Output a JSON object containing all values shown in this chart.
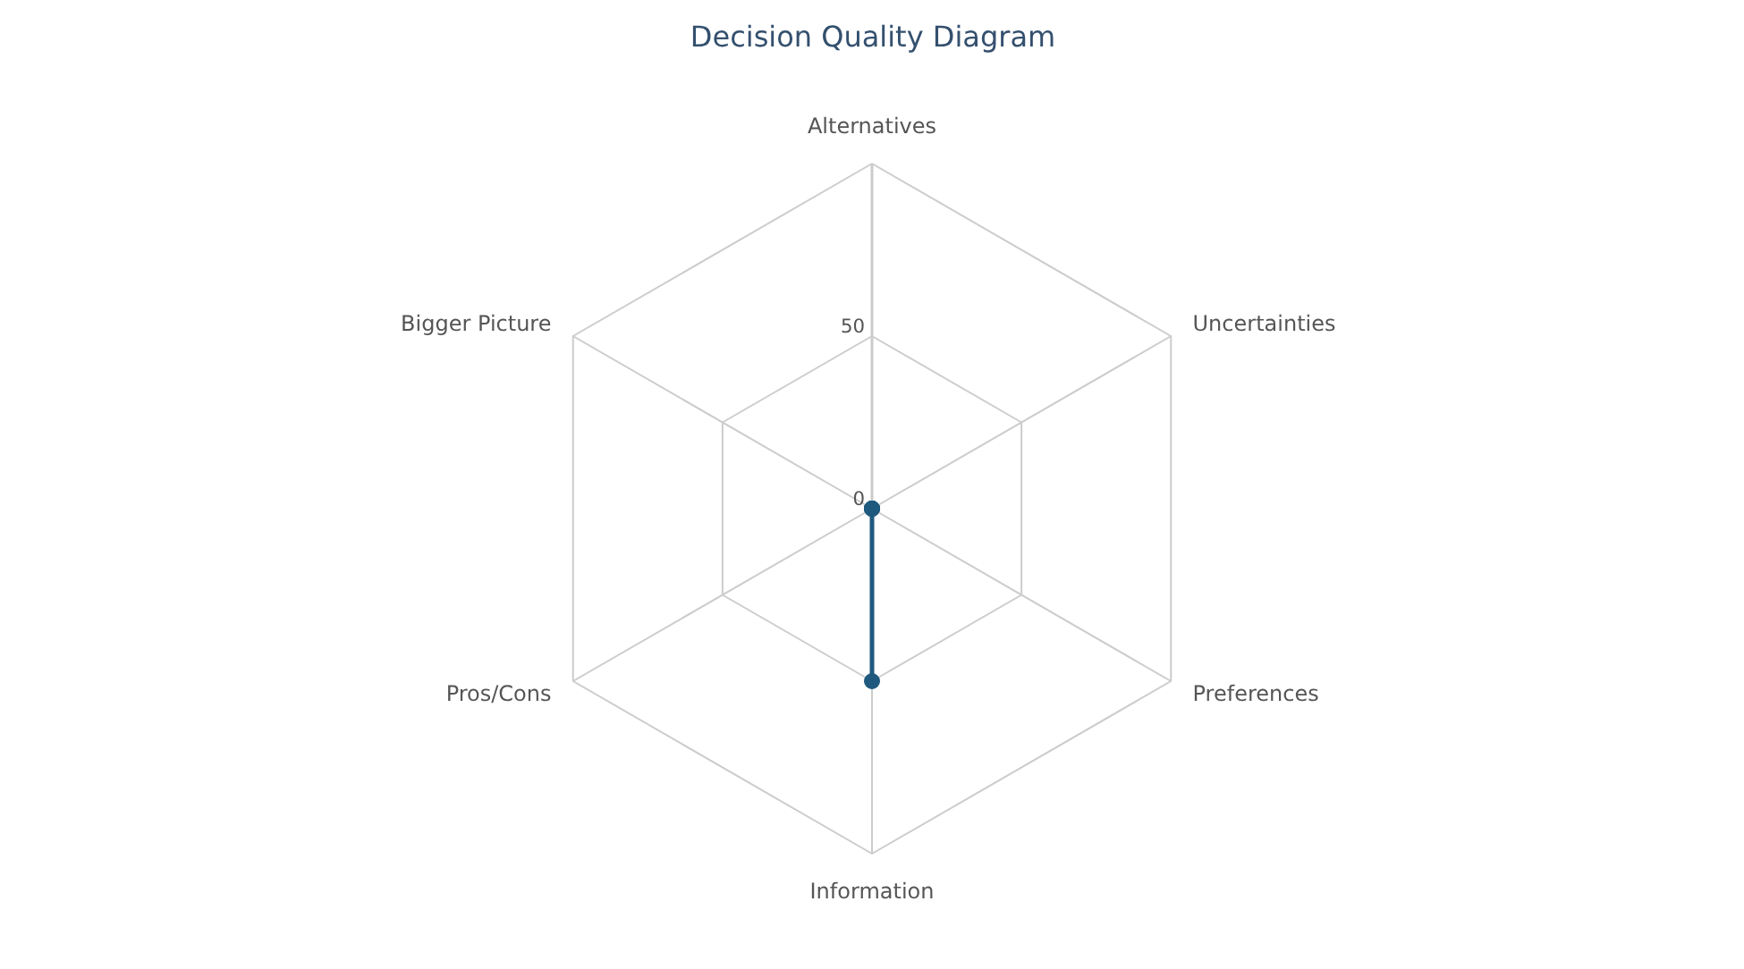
{
  "chart_data": {
    "type": "radar",
    "title": "Decision Quality Diagram",
    "categories": [
      "Alternatives",
      "Uncertainties",
      "Preferences",
      "Information",
      "Pros/Cons",
      "Bigger Picture"
    ],
    "series": [
      {
        "color": "#1f5a7e",
        "values": [
          0,
          0,
          0,
          50,
          0,
          0
        ]
      }
    ],
    "ylim": [
      0,
      100
    ],
    "yticks": [
      0,
      50
    ],
    "grid": true,
    "marker": "circle"
  }
}
